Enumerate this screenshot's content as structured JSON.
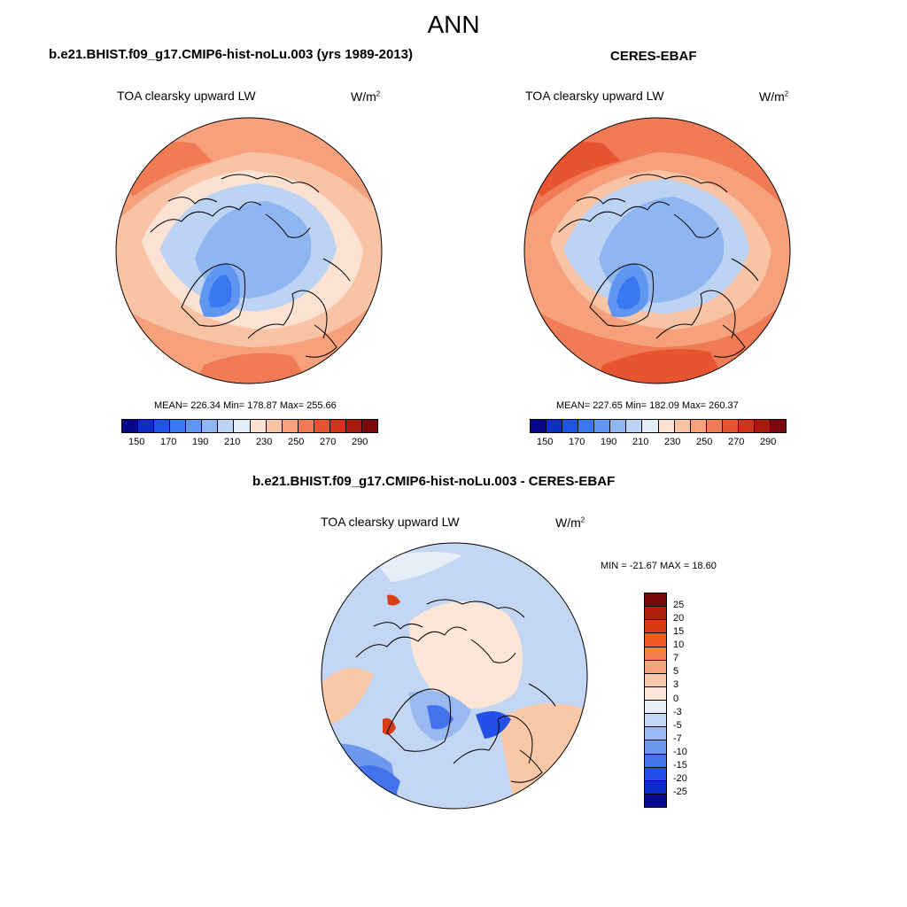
{
  "title": "ANN",
  "units_base": "W/m",
  "units_exp": "2",
  "panels": [
    {
      "case_title": "b.e21.BHIST.f09_g17.CMIP6-hist-noLu.003 (yrs 1989-2013)",
      "variable": "TOA clearsky upward LW",
      "stats": "MEAN= 226.34  Min= 178.87  Max= 255.66"
    },
    {
      "case_title": "CERES-EBAF",
      "variable": "TOA clearsky upward LW",
      "stats": "MEAN= 227.65  Min= 182.09  Max= 260.37"
    },
    {
      "case_title": "b.e21.BHIST.f09_g17.CMIP6-hist-noLu.003 - CERES-EBAF",
      "variable": "TOA clearsky upward LW",
      "stats": "MIN = -21.67 MAX =  18.60"
    }
  ],
  "colorbar_abs": {
    "labels": [
      "150",
      "170",
      "190",
      "210",
      "230",
      "250",
      "270",
      "290"
    ],
    "colors": [
      "#08088c",
      "#0d2fc8",
      "#1d55e8",
      "#3878f0",
      "#5e96f2",
      "#8fb6f0",
      "#bcd3f4",
      "#e3edf8",
      "#fbe2d2",
      "#f9c3a6",
      "#f6a07c",
      "#f07b55",
      "#e65430",
      "#d0321a",
      "#a81a0e",
      "#7c0909"
    ]
  },
  "colorbar_diff": {
    "labels": [
      "25",
      "20",
      "15",
      "10",
      "7",
      "5",
      "3",
      "0",
      "-3",
      "-5",
      "-7",
      "-10",
      "-15",
      "-20",
      "-25"
    ],
    "colors": [
      "#7c0909",
      "#b0200c",
      "#d83a14",
      "#f05a22",
      "#f47e4c",
      "#f7a47a",
      "#f9c8a8",
      "#fce6d8",
      "#e6eef8",
      "#c3d6f3",
      "#9ab9f0",
      "#6e97ef",
      "#4473ee",
      "#2350e8",
      "#0c2ec8",
      "#08088c"
    ]
  }
}
